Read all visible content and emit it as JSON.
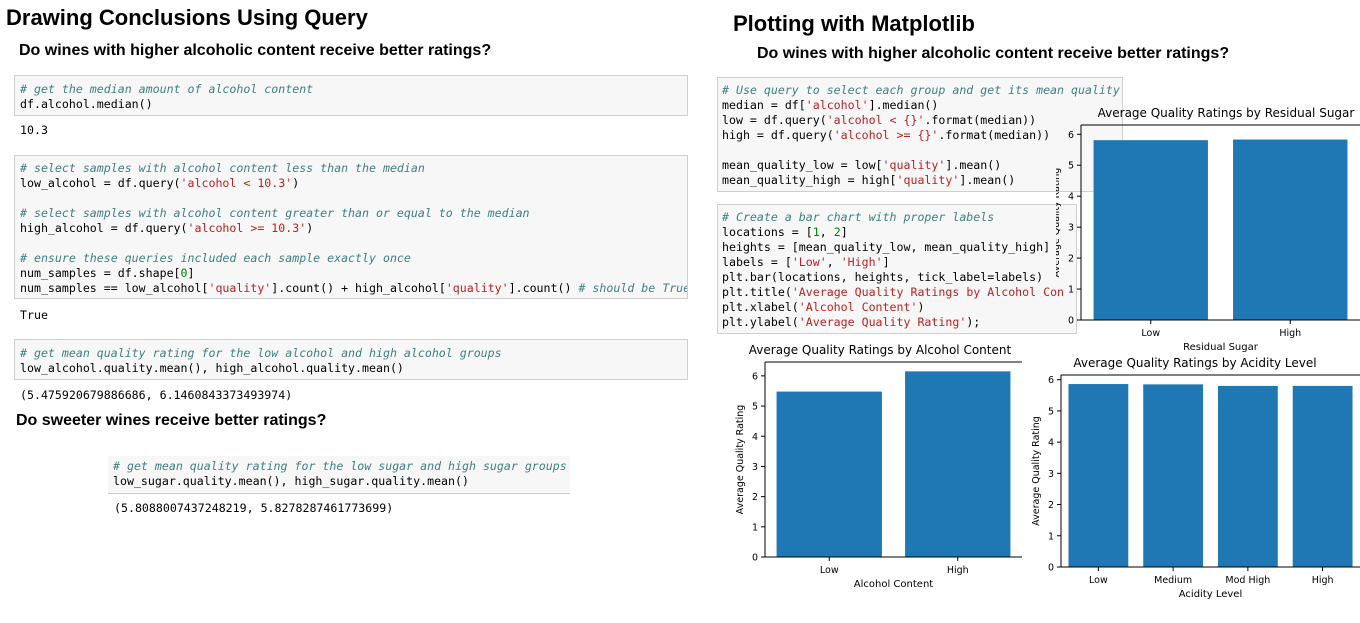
{
  "left": {
    "title": "Drawing Conclusions Using Query",
    "question1": "Do wines with higher alcoholic content receive better ratings?",
    "cell1": {
      "comment": "# get the median amount of alcohol content",
      "line1": "df.alcohol.median()",
      "output": "10.3"
    },
    "cell2": {
      "comment1": "# select samples with alcohol content less than the median",
      "line1_pre": "low_alcohol = df.query(",
      "line1_str": "'alcohol < 10.3'",
      "line1_post": ")",
      "comment2": "# select samples with alcohol content greater than or equal to the median",
      "line2_pre": "high_alcohol = df.query(",
      "line2_str": "'alcohol >= 10.3'",
      "line2_post": ")",
      "comment3": "# ensure these queries included each sample exactly once",
      "line3_pre": "num_samples = df.shape[",
      "line3_num": "0",
      "line3_post": "]",
      "line4_a": "num_samples == low_alcohol[",
      "line4_s1": "'quality'",
      "line4_b": "].count() + high_alcohol[",
      "line4_s2": "'quality'",
      "line4_c": "].count() ",
      "line4_comment": "# should be True",
      "output": "True"
    },
    "cell3": {
      "comment": "# get mean quality rating for the low alcohol and high alcohol groups",
      "line1": "low_alcohol.quality.mean(), high_alcohol.quality.mean()",
      "output": "(5.475920679886686, 6.1460843373493974)"
    },
    "question2": "Do sweeter wines receive better ratings?",
    "cell4": {
      "comment": "# get mean quality rating for the low sugar and high sugar groups",
      "line1": "low_sugar.quality.mean(), high_sugar.quality.mean()",
      "output": "(5.8088007437248219, 5.8278287461773699)"
    }
  },
  "right": {
    "title": "Plotting with Matplotlib",
    "question": "Do wines with higher alcoholic content receive better ratings?",
    "cell1": {
      "comment": "# Use query to select each group and get its mean quality",
      "l1_a": "median = df[",
      "l1_s": "'alcohol'",
      "l1_b": "].median()",
      "l2_a": "low = df.query(",
      "l2_s": "'alcohol < {}'",
      "l2_b": ".format(median))",
      "l3_a": "high = df.query(",
      "l3_s": "'alcohol >= {}'",
      "l3_b": ".format(median))",
      "l4_a": "mean_quality_low = low[",
      "l4_s": "'quality'",
      "l4_b": "].mean()",
      "l5_a": "mean_quality_high = high[",
      "l5_s": "'quality'",
      "l5_b": "].mean()"
    },
    "cell2": {
      "comment": "# Create a bar chart with proper labels",
      "l1_a": "locations = [",
      "l1_n1": "1",
      "l1_b": ", ",
      "l1_n2": "2",
      "l1_c": "]",
      "l2": "heights = [mean_quality_low, mean_quality_high]",
      "l3_a": "labels = [",
      "l3_s1": "'Low'",
      "l3_b": ", ",
      "l3_s2": "'High'",
      "l3_c": "]",
      "l4": "plt.bar(locations, heights, tick_label=labels)",
      "l5_a": "plt.title(",
      "l5_s": "'Average Quality Ratings by Alcohol Con",
      "l6_a": "plt.xlabel(",
      "l6_s": "'Alcohol Content'",
      "l6_b": ")",
      "l7_a": "plt.ylabel(",
      "l7_s": "'Average Quality Rating'",
      "l7_b": ");"
    }
  },
  "chart_data": [
    {
      "id": "sugar",
      "type": "bar",
      "title": "Average Quality Ratings by Residual Sugar",
      "xlabel": "Residual Sugar",
      "ylabel": "Average Quality Rating",
      "categories": [
        "Low",
        "High"
      ],
      "values": [
        5.81,
        5.83
      ],
      "ylim": [
        0,
        6.3
      ],
      "yticks": [
        0,
        1,
        2,
        3,
        4,
        5,
        6
      ],
      "color": "#1f77b4"
    },
    {
      "id": "alcohol",
      "type": "bar",
      "title": "Average Quality Ratings by Alcohol Content",
      "xlabel": "Alcohol Content",
      "ylabel": "Average Quality Rating",
      "categories": [
        "Low",
        "High"
      ],
      "values": [
        5.48,
        6.15
      ],
      "ylim": [
        0,
        6.46
      ],
      "yticks": [
        0,
        1,
        2,
        3,
        4,
        5,
        6
      ],
      "color": "#1f77b4"
    },
    {
      "id": "acidity",
      "type": "bar",
      "title": "Average Quality Ratings by Acidity Level",
      "xlabel": "Acidity Level",
      "ylabel": "Average Quality Rating",
      "categories": [
        "Low",
        "Medium",
        "Mod High",
        "High"
      ],
      "values": [
        5.86,
        5.85,
        5.8,
        5.8
      ],
      "ylim": [
        0,
        6.15
      ],
      "yticks": [
        0,
        1,
        2,
        3,
        4,
        5,
        6
      ],
      "color": "#1f77b4"
    }
  ]
}
